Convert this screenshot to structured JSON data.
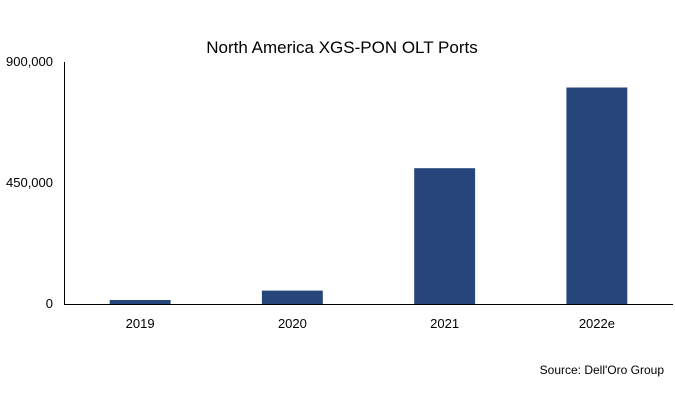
{
  "chart_data": {
    "type": "bar",
    "title": "North America XGS-PON OLT Ports",
    "categories": [
      "2019",
      "2020",
      "2021",
      "2022e"
    ],
    "values": [
      15000,
      50000,
      505000,
      805000
    ],
    "ylim": [
      0,
      900000
    ],
    "yticks": [
      0,
      450000,
      900000
    ],
    "ytick_labels": [
      "0",
      "450,000",
      "900,000"
    ],
    "xlabel": "",
    "ylabel": "",
    "grid": false,
    "legend": "none",
    "bar_color": "#26457a"
  },
  "source": "Source: Dell'Oro Group"
}
